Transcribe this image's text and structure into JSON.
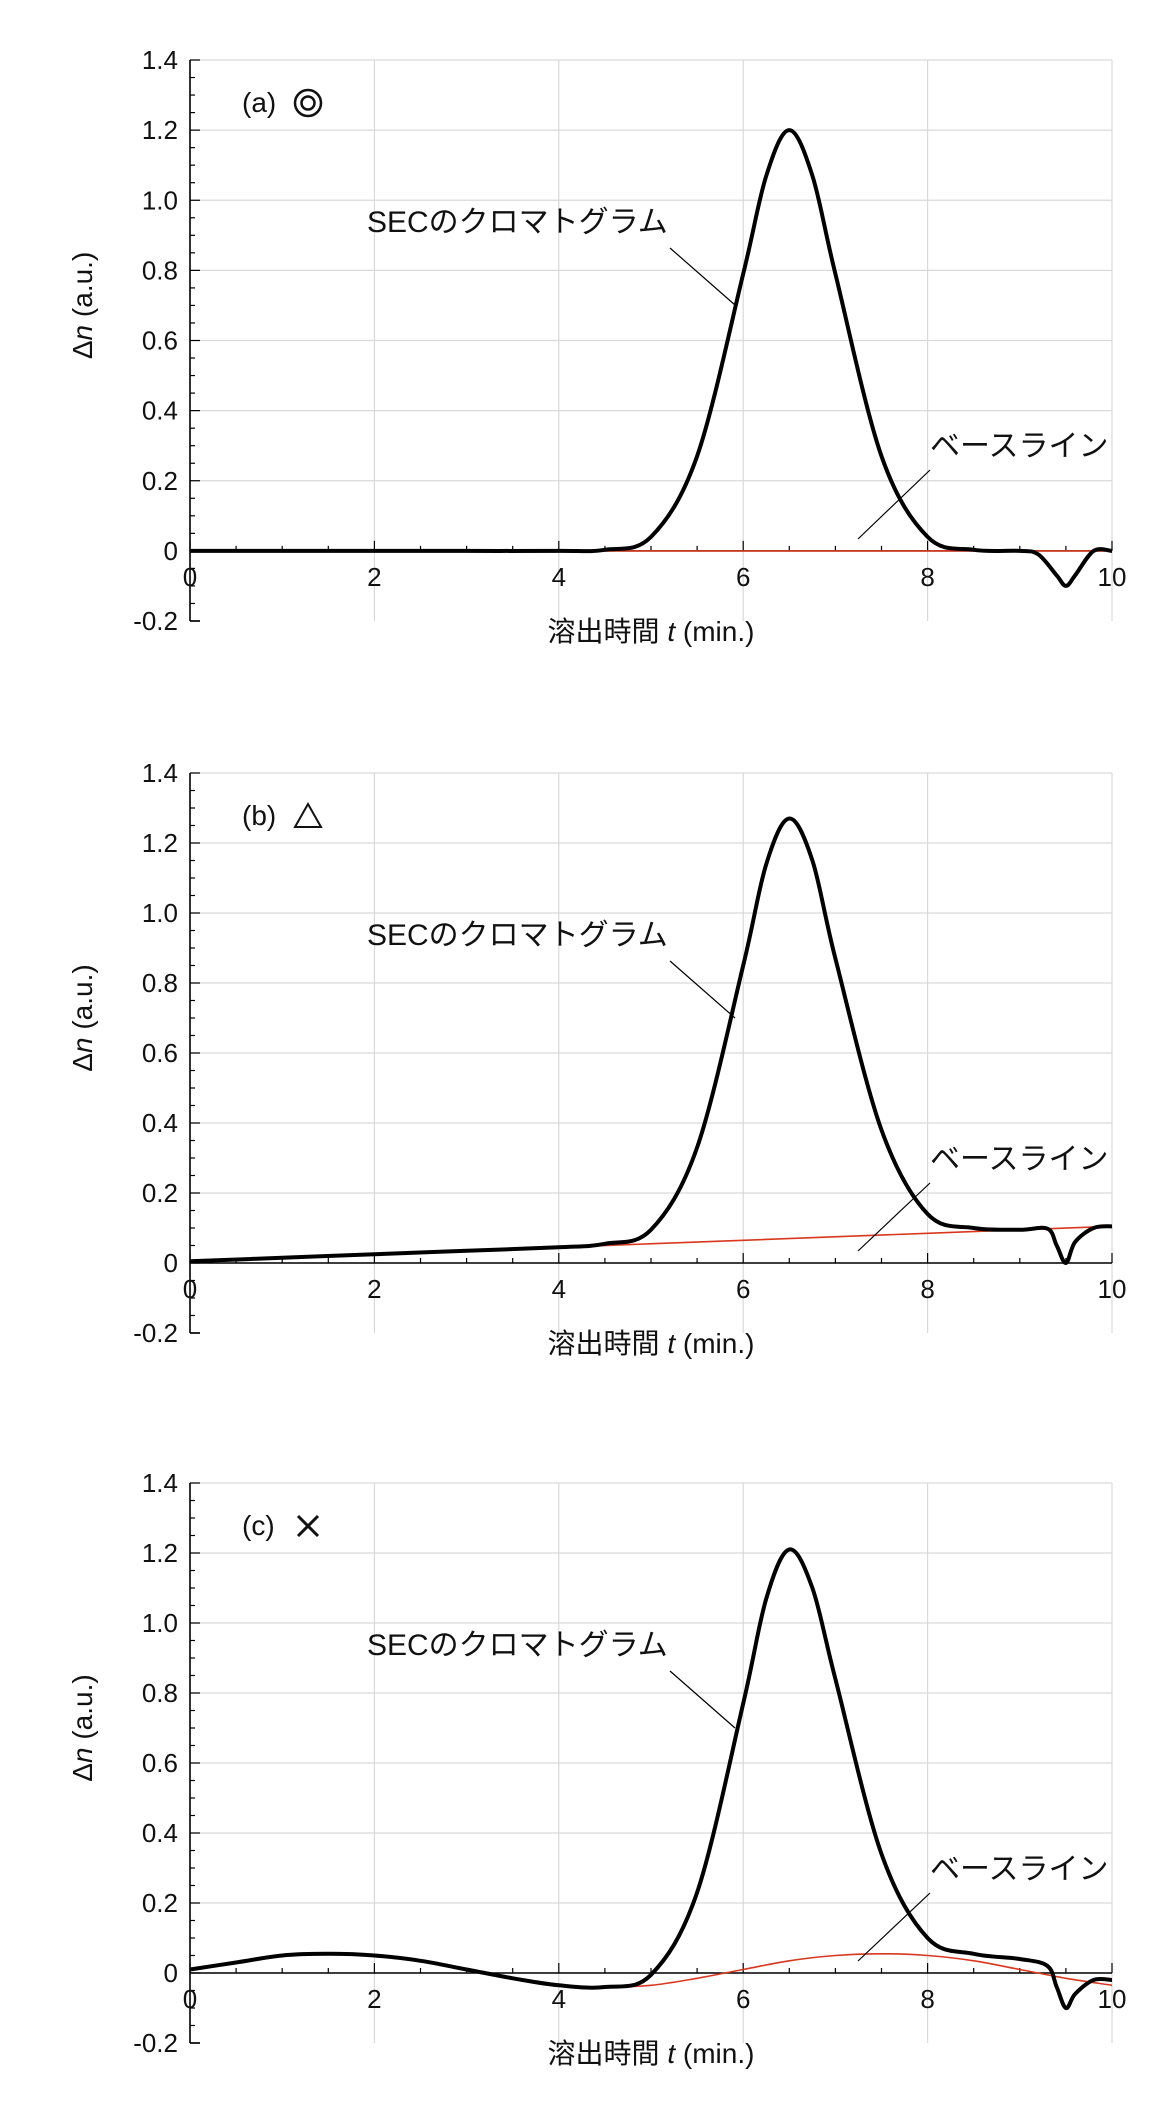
{
  "figure": {
    "xlabel_prefix": "溶出時間 ",
    "xlabel_var": "t",
    "xlabel_unit": " (min.)",
    "ylabel_delta": "Δ",
    "ylabel_var": "n",
    "ylabel_unit": " (a.u.)",
    "annotation_chromatogram": "SECのクロマトグラム",
    "annotation_baseline": "ベースライン"
  },
  "colors": {
    "chromatogram": "#000000",
    "baseline": "#d9381e",
    "grid": "#d9d9d9"
  },
  "chart_data": [
    {
      "type": "line",
      "panel_label": "(a)",
      "panel_symbol": "double-circle",
      "xlim": [
        0,
        10
      ],
      "ylim": [
        -0.2,
        1.4
      ],
      "xticks": [
        "0",
        "2",
        "4",
        "6",
        "8",
        "10"
      ],
      "yticks": [
        "-0.2",
        "0",
        "0.2",
        "0.4",
        "0.6",
        "0.8",
        "1.0",
        "1.2",
        "1.4"
      ],
      "grid": true,
      "series": [
        {
          "x": [
            0,
            1,
            2,
            3,
            4,
            4.5,
            5,
            5.5,
            6,
            6.25,
            6.5,
            6.75,
            7,
            7.5,
            8,
            8.5,
            9,
            9.2,
            9.4,
            9.5,
            9.6,
            9.8,
            10
          ],
          "y": [
            0,
            0,
            0,
            0,
            0,
            0.003,
            0.04,
            0.27,
            0.79,
            1.07,
            1.2,
            1.07,
            0.79,
            0.27,
            0.04,
            0.003,
            0,
            -0.01,
            -0.07,
            -0.1,
            -0.07,
            0,
            0
          ]
        },
        {
          "x": [
            0,
            2,
            4,
            6,
            8,
            10
          ],
          "y": [
            0,
            0,
            0,
            0,
            0,
            0
          ]
        }
      ]
    },
    {
      "type": "line",
      "panel_label": "(b)",
      "panel_symbol": "triangle",
      "xlim": [
        0,
        10
      ],
      "ylim": [
        -0.2,
        1.4
      ],
      "xticks": [
        "0",
        "2",
        "4",
        "6",
        "8",
        "10"
      ],
      "yticks": [
        "-0.2",
        "0",
        "0.2",
        "0.4",
        "0.6",
        "0.8",
        "1.0",
        "1.2",
        "1.4"
      ],
      "grid": true,
      "series": [
        {
          "x": [
            0,
            1,
            2,
            3,
            4,
            4.5,
            5,
            5.5,
            6,
            6.25,
            6.5,
            6.75,
            7,
            7.5,
            8,
            8.5,
            9,
            9.3,
            9.4,
            9.5,
            9.6,
            9.8,
            10
          ],
          "y": [
            0.005,
            0.015,
            0.025,
            0.035,
            0.045,
            0.055,
            0.095,
            0.33,
            0.85,
            1.14,
            1.27,
            1.15,
            0.87,
            0.38,
            0.14,
            0.1,
            0.095,
            0.098,
            0.05,
            0.0,
            0.06,
            0.1,
            0.105
          ]
        },
        {
          "x": [
            0,
            2,
            4,
            6,
            8,
            10
          ],
          "y": [
            0.005,
            0.025,
            0.045,
            0.065,
            0.085,
            0.105
          ]
        }
      ]
    },
    {
      "type": "line",
      "panel_label": "(c)",
      "panel_symbol": "cross",
      "xlim": [
        0,
        10
      ],
      "ylim": [
        -0.2,
        1.4
      ],
      "xticks": [
        "0",
        "2",
        "4",
        "6",
        "8",
        "10"
      ],
      "yticks": [
        "-0.2",
        "0",
        "0.2",
        "0.4",
        "0.6",
        "0.8",
        "1.0",
        "1.2",
        "1.4"
      ],
      "grid": true,
      "series": [
        {
          "x": [
            0,
            0.5,
            1,
            1.5,
            2,
            2.5,
            3,
            3.5,
            4,
            4.5,
            5,
            5.5,
            6,
            6.25,
            6.5,
            6.75,
            7,
            7.5,
            8,
            8.5,
            9,
            9.3,
            9.4,
            9.5,
            9.6,
            9.8,
            10
          ],
          "y": [
            0.01,
            0.03,
            0.05,
            0.055,
            0.05,
            0.035,
            0.01,
            -0.015,
            -0.035,
            -0.04,
            -0.005,
            0.23,
            0.77,
            1.07,
            1.21,
            1.1,
            0.84,
            0.34,
            0.1,
            0.055,
            0.04,
            0.02,
            -0.04,
            -0.1,
            -0.06,
            -0.02,
            -0.02
          ]
        },
        {
          "x": [
            0,
            0.5,
            1,
            1.5,
            2,
            2.5,
            3,
            3.5,
            4,
            4.5,
            5,
            5.5,
            6,
            6.5,
            7,
            7.5,
            8,
            8.5,
            9,
            9.5,
            10
          ],
          "y": [
            0.01,
            0.03,
            0.05,
            0.055,
            0.05,
            0.035,
            0.01,
            -0.015,
            -0.035,
            -0.04,
            -0.035,
            -0.015,
            0.01,
            0.035,
            0.05,
            0.055,
            0.05,
            0.035,
            0.01,
            -0.015,
            -0.035
          ]
        }
      ]
    }
  ]
}
